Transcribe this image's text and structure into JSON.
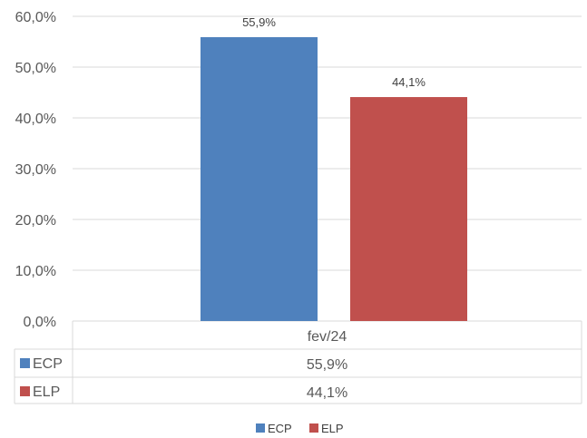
{
  "chart_data": {
    "type": "bar",
    "categories": [
      "fev/24"
    ],
    "series": [
      {
        "name": "ECP",
        "values": [
          55.9
        ],
        "color": "#4F81BD",
        "label": "55,9%"
      },
      {
        "name": "ELP",
        "values": [
          44.1
        ],
        "color": "#C0504D",
        "label": "44,1%"
      }
    ],
    "ylim": [
      0,
      60
    ],
    "yticks": [
      "0,0%",
      "10,0%",
      "20,0%",
      "30,0%",
      "40,0%",
      "50,0%",
      "60,0%"
    ],
    "grid": true,
    "data_table": true,
    "legend_position": "bottom"
  }
}
